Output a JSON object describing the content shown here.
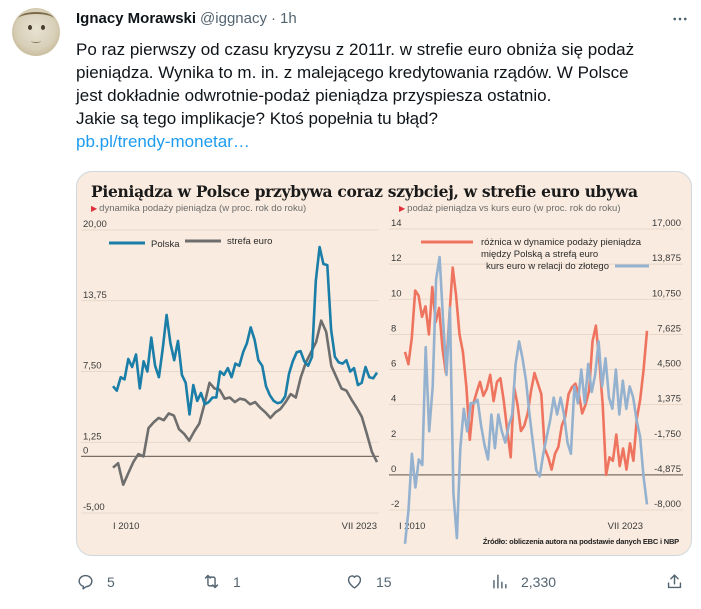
{
  "tweet": {
    "author_name": "Ignacy Morawski",
    "author_handle": "@iggnacy",
    "separator": "·",
    "time": "1h",
    "more_icon": "more-horizontal-icon",
    "text_lines": [
      "Po raz pierwszy od czasu kryzysu z 2011r. w strefie euro obniża się podaż",
      "pieniądza. Wynika to m. in. z malejącego kredytowania rządów. W Polsce",
      "jest dokładnie odwrotnie-podaż pieniądza przyspiesza ostatnio.",
      "Jakie są tego implikacje? Ktoś popełnia tu błąd?"
    ],
    "link": "pb.pl/trendy-monetar…"
  },
  "media": {
    "title": "Pieniądza w Polsce przybywa coraz szybciej, w strefie euro ubywa",
    "subtitle_left": "dynamika podaży pieniądza (w proc. rok do roku)",
    "subtitle_right": "podaż pieniądza vs kurs euro (w proc. rok do roku)",
    "source": "Źródło: obliczenia autora na podstawie danych EBC i NBP",
    "colors": {
      "background": "#f9ebdf",
      "polska": "#1a7ea8",
      "strefa_euro": "#6e6e6e",
      "roznica": "#ee7460",
      "kurs": "#94b2cf"
    }
  },
  "chart_data": [
    {
      "type": "line",
      "title": "dynamika podaży pieniądza (w proc. rok do roku)",
      "xlabel": "",
      "ylabel": "",
      "x_ticks": [
        "I 2010",
        "VII 2023"
      ],
      "y_ticks": [
        "20,00",
        "13,75",
        "7,50",
        "1,25",
        "0",
        "-5,00"
      ],
      "ylim": [
        -5,
        20
      ],
      "legend": [
        "Polska",
        "strefa euro"
      ],
      "series": [
        {
          "name": "Polska",
          "color": "#1a7ea8",
          "values": [
            6.2,
            5.8,
            7.0,
            6.8,
            8.6,
            7.9,
            9.0,
            6.0,
            8.4,
            7.5,
            10.5,
            8.0,
            7.0,
            9.5,
            12.5,
            10.0,
            8.5,
            10.2,
            7.2,
            6.5,
            3.7,
            6.3,
            4.9,
            5.6,
            4.6,
            4.8,
            5.2,
            5.2,
            7.5,
            7.2,
            7.8,
            7.0,
            8.2,
            8.0,
            9.2,
            10.0,
            11.4,
            10.3,
            8.5,
            8.0,
            6.2,
            5.4,
            4.9,
            4.7,
            4.8,
            5.3,
            7.3,
            8.4,
            9.2,
            9.3,
            8.4,
            8.0,
            8.8,
            15.5,
            18.5,
            17.0,
            16.9,
            11.2,
            8.8,
            8.3,
            8.2,
            8.5,
            7.5,
            7.8,
            6.3,
            6.5,
            7.9,
            7.0,
            6.9,
            7.4
          ]
        },
        {
          "name": "strefa euro",
          "color": "#6e6e6e",
          "values": [
            -1.0,
            -0.6,
            -2.5,
            -1.5,
            -0.5,
            0.2,
            0.0,
            2.5,
            3.0,
            3.4,
            3.2,
            3.8,
            3.6,
            2.4,
            2.0,
            1.4,
            2.2,
            2.9,
            4.6,
            6.5,
            6.0,
            5.9,
            5.1,
            5.2,
            4.8,
            5.1,
            5.0,
            4.6,
            4.8,
            4.3,
            3.9,
            3.4,
            3.9,
            4.2,
            4.8,
            5.5,
            5.2,
            7.0,
            8.3,
            9.2,
            10.1,
            12.0,
            11.0,
            8.0,
            7.0,
            6.0,
            5.8,
            5.0,
            4.3,
            3.5,
            2.0,
            0.4,
            -0.5
          ]
        }
      ]
    },
    {
      "type": "line",
      "title": "podaż pieniądza vs kurs euro (w proc. rok do roku)",
      "xlabel": "",
      "ylabel": "",
      "x_ticks": [
        "I 2010",
        "VII 2023"
      ],
      "y_ticks_left": [
        "14",
        "12",
        "10",
        "8",
        "6",
        "4",
        "2",
        "0",
        "-2"
      ],
      "y_ticks_right": [
        "17,000",
        "13,875",
        "10,750",
        "7,625",
        "4,500",
        "1,375",
        "-1,750",
        "-4,875",
        "-8,000"
      ],
      "ylim_left": [
        -2,
        14
      ],
      "ylim_right": [
        -8,
        17
      ],
      "legend": [
        "różnica w dynamice podaży pieniądza między Polską a strefą euro",
        "kurs euro w relacji do złotego"
      ],
      "series": [
        {
          "name": "różnica w dynamice podaży pieniądza między Polską a strefą euro",
          "axis": "left",
          "color": "#ee7460",
          "values": [
            7.0,
            6.3,
            7.8,
            10.5,
            10.2,
            9.0,
            9.6,
            8.0,
            10.7,
            8.7,
            9.5,
            7.2,
            5.8,
            9.0,
            11.8,
            10.2,
            8.0,
            7.0,
            5.0,
            2.0,
            4.0,
            4.7,
            5.3,
            4.5,
            4.9,
            5.7,
            4.2,
            5.3,
            5.5,
            4.2,
            2.5,
            1.0,
            5.0,
            4.0,
            2.5,
            2.8,
            3.5,
            4.8,
            5.8,
            5.2,
            4.6,
            1.5,
            1.0,
            0.3,
            1.2,
            1.6,
            2.8,
            3.3,
            4.6,
            5.0,
            5.2,
            4.6,
            3.5,
            4.0,
            4.8,
            7.6,
            8.5,
            6.5,
            4.0,
            0.0,
            1.0,
            0.8,
            2.3,
            0.5,
            1.5,
            0.3,
            1.8,
            0.8,
            3.2,
            4.3,
            6.0,
            8.2
          ]
        },
        {
          "name": "kurs euro w relacji do złotego",
          "axis": "right",
          "color": "#94b2cf",
          "values": [
            -11.0,
            -8.0,
            -3.0,
            -6.0,
            -3.5,
            -4.0,
            6.5,
            -1.0,
            3.0,
            12.5,
            14.5,
            9.0,
            4.0,
            10.0,
            -6.5,
            -10.5,
            -2.5,
            1.0,
            -1.0,
            1.5,
            1.5,
            1.8,
            -0.5,
            -2.2,
            -3.5,
            0.5,
            -2.5,
            0.5,
            -1.0,
            -2.0,
            -0.5,
            0.5,
            5.0,
            7.0,
            5.5,
            3.5,
            0.5,
            -2.0,
            -4.5,
            -5.0,
            -3.0,
            -1.5,
            0.0,
            2.0,
            0.5,
            2.0,
            0.5,
            -2.0,
            -3.0,
            3.0,
            1.5,
            4.5,
            1.5,
            5.0,
            2.5,
            4.0,
            7.0,
            3.0,
            5.5,
            2.0,
            1.0,
            4.5,
            0.5,
            3.5,
            1.0,
            3.0,
            2.0,
            0.0,
            -1.5,
            -5.0,
            -7.5
          ]
        }
      ]
    }
  ],
  "actions": {
    "reply": {
      "icon": "reply-icon",
      "count": "5"
    },
    "retweet": {
      "icon": "retweet-icon",
      "count": "1"
    },
    "like": {
      "icon": "heart-icon",
      "count": "15"
    },
    "views": {
      "icon": "views-chart-icon",
      "count": "2,330"
    },
    "share": {
      "icon": "share-icon"
    }
  }
}
